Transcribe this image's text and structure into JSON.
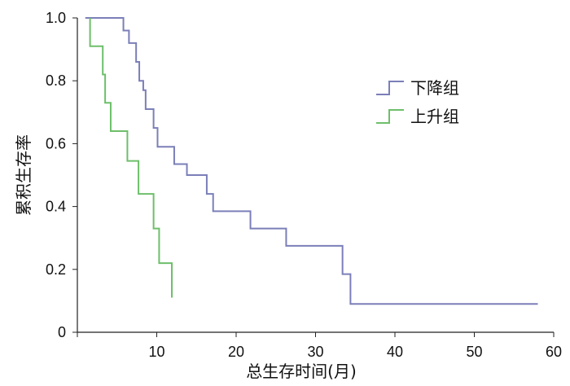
{
  "chart_data": {
    "type": "line",
    "title": "",
    "xlabel": "总生存时间(月)",
    "ylabel": "累积生存率",
    "xlim": [
      0,
      60
    ],
    "ylim": [
      0,
      1
    ],
    "x_ticks": [
      0,
      10,
      20,
      30,
      40,
      50,
      60
    ],
    "y_ticks": [
      0,
      0.2,
      0.4,
      0.6,
      0.8,
      1.0
    ],
    "x_tick_labels": [
      "10",
      "20",
      "30",
      "40",
      "50",
      "60"
    ],
    "y_tick_labels": [
      "0",
      "0.2",
      "0.4",
      "0.6",
      "0.8",
      "1.0"
    ],
    "grid": false,
    "legend_position": "upper-right",
    "series": [
      {
        "name": "下降组",
        "color": "#7b7fb8",
        "step_points": [
          [
            1,
            1.0
          ],
          [
            5.8,
            1.0
          ],
          [
            5.8,
            0.96
          ],
          [
            6.5,
            0.96
          ],
          [
            6.5,
            0.92
          ],
          [
            7.4,
            0.92
          ],
          [
            7.4,
            0.86
          ],
          [
            7.8,
            0.86
          ],
          [
            7.8,
            0.8
          ],
          [
            8.3,
            0.8
          ],
          [
            8.3,
            0.77
          ],
          [
            8.6,
            0.77
          ],
          [
            8.6,
            0.71
          ],
          [
            9.6,
            0.71
          ],
          [
            9.6,
            0.65
          ],
          [
            10.1,
            0.65
          ],
          [
            10.1,
            0.59
          ],
          [
            12.2,
            0.59
          ],
          [
            12.2,
            0.535
          ],
          [
            13.8,
            0.535
          ],
          [
            13.8,
            0.5
          ],
          [
            16.3,
            0.5
          ],
          [
            16.3,
            0.44
          ],
          [
            17.1,
            0.44
          ],
          [
            17.1,
            0.385
          ],
          [
            21.8,
            0.385
          ],
          [
            21.8,
            0.33
          ],
          [
            26.3,
            0.33
          ],
          [
            26.3,
            0.275
          ],
          [
            33.4,
            0.275
          ],
          [
            33.4,
            0.185
          ],
          [
            34.4,
            0.185
          ],
          [
            34.4,
            0.09
          ],
          [
            58,
            0.09
          ]
        ]
      },
      {
        "name": "上升组",
        "color": "#6dbf6a",
        "step_points": [
          [
            1.6,
            1.0
          ],
          [
            1.6,
            0.91
          ],
          [
            3.2,
            0.91
          ],
          [
            3.2,
            0.82
          ],
          [
            3.5,
            0.82
          ],
          [
            3.5,
            0.73
          ],
          [
            4.2,
            0.73
          ],
          [
            4.2,
            0.64
          ],
          [
            6.3,
            0.64
          ],
          [
            6.3,
            0.545
          ],
          [
            7.7,
            0.545
          ],
          [
            7.7,
            0.44
          ],
          [
            9.6,
            0.44
          ],
          [
            9.6,
            0.33
          ],
          [
            10.3,
            0.33
          ],
          [
            10.3,
            0.22
          ],
          [
            11.9,
            0.22
          ],
          [
            11.9,
            0.11
          ]
        ]
      }
    ]
  }
}
